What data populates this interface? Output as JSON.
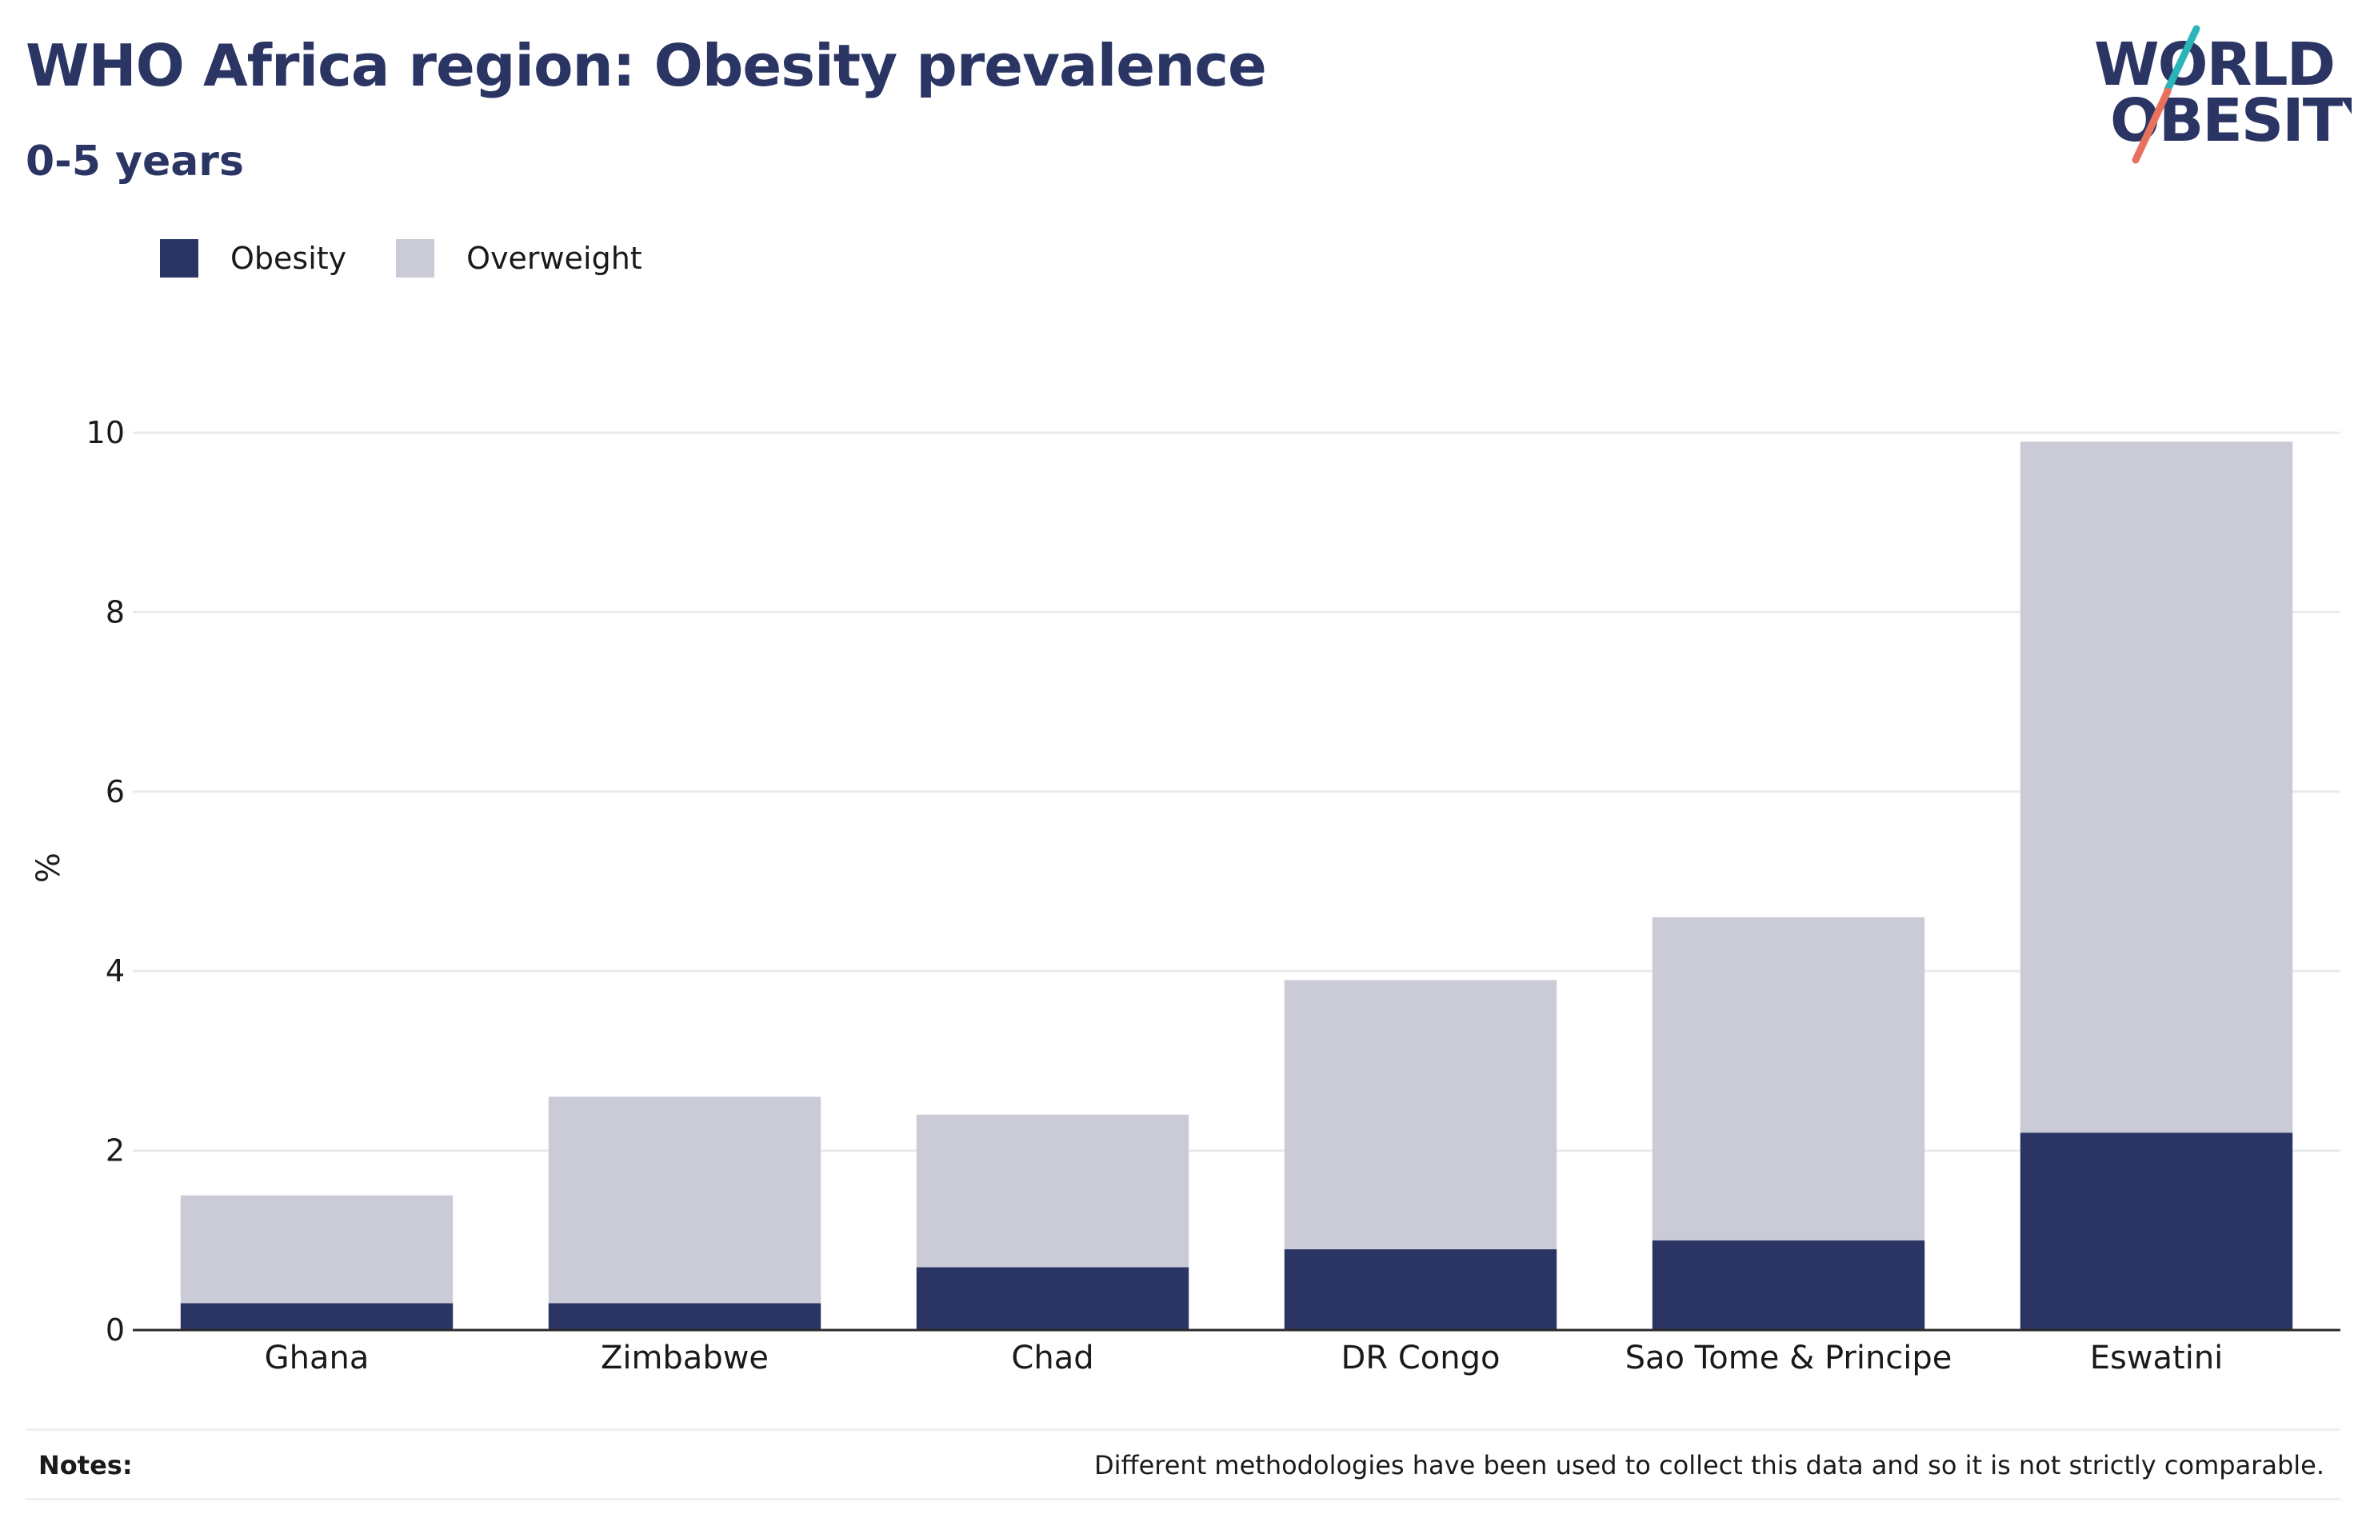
{
  "header": {
    "title": "WHO Africa region: Obesity prevalence",
    "subtitle": "0-5 years"
  },
  "logo": {
    "line1": "WORLD",
    "line2": "OBESITY",
    "colors": {
      "text": "#2a3564",
      "teal": "#2bb5b8",
      "coral": "#e8705c"
    }
  },
  "legend": [
    {
      "label": "Obesity",
      "color": "#2a3564"
    },
    {
      "label": "Overweight",
      "color": "#cacbd6"
    }
  ],
  "chart_data": {
    "type": "bar",
    "stacked": true,
    "title": "WHO Africa region: Obesity prevalence",
    "subtitle": "0-5 years",
    "xlabel": "",
    "ylabel": "%",
    "ylim": [
      0,
      10
    ],
    "yticks": [
      0,
      2,
      4,
      6,
      8,
      10
    ],
    "grid": true,
    "legend_position": "top-left",
    "categories": [
      "Ghana",
      "Zimbabwe",
      "Chad",
      "DR Congo",
      "Sao Tome & Principe",
      "Eswatini"
    ],
    "series": [
      {
        "name": "Obesity",
        "color": "#2a3564",
        "values": [
          0.3,
          0.3,
          0.7,
          0.9,
          1.0,
          2.2
        ]
      },
      {
        "name": "Overweight",
        "color": "#cacbd6",
        "values": [
          1.2,
          2.3,
          1.7,
          3.0,
          3.6,
          7.7
        ]
      }
    ]
  },
  "notes": {
    "label": "Notes:",
    "text": "Different methodologies have been used to collect this data and so it is not strictly comparable."
  }
}
